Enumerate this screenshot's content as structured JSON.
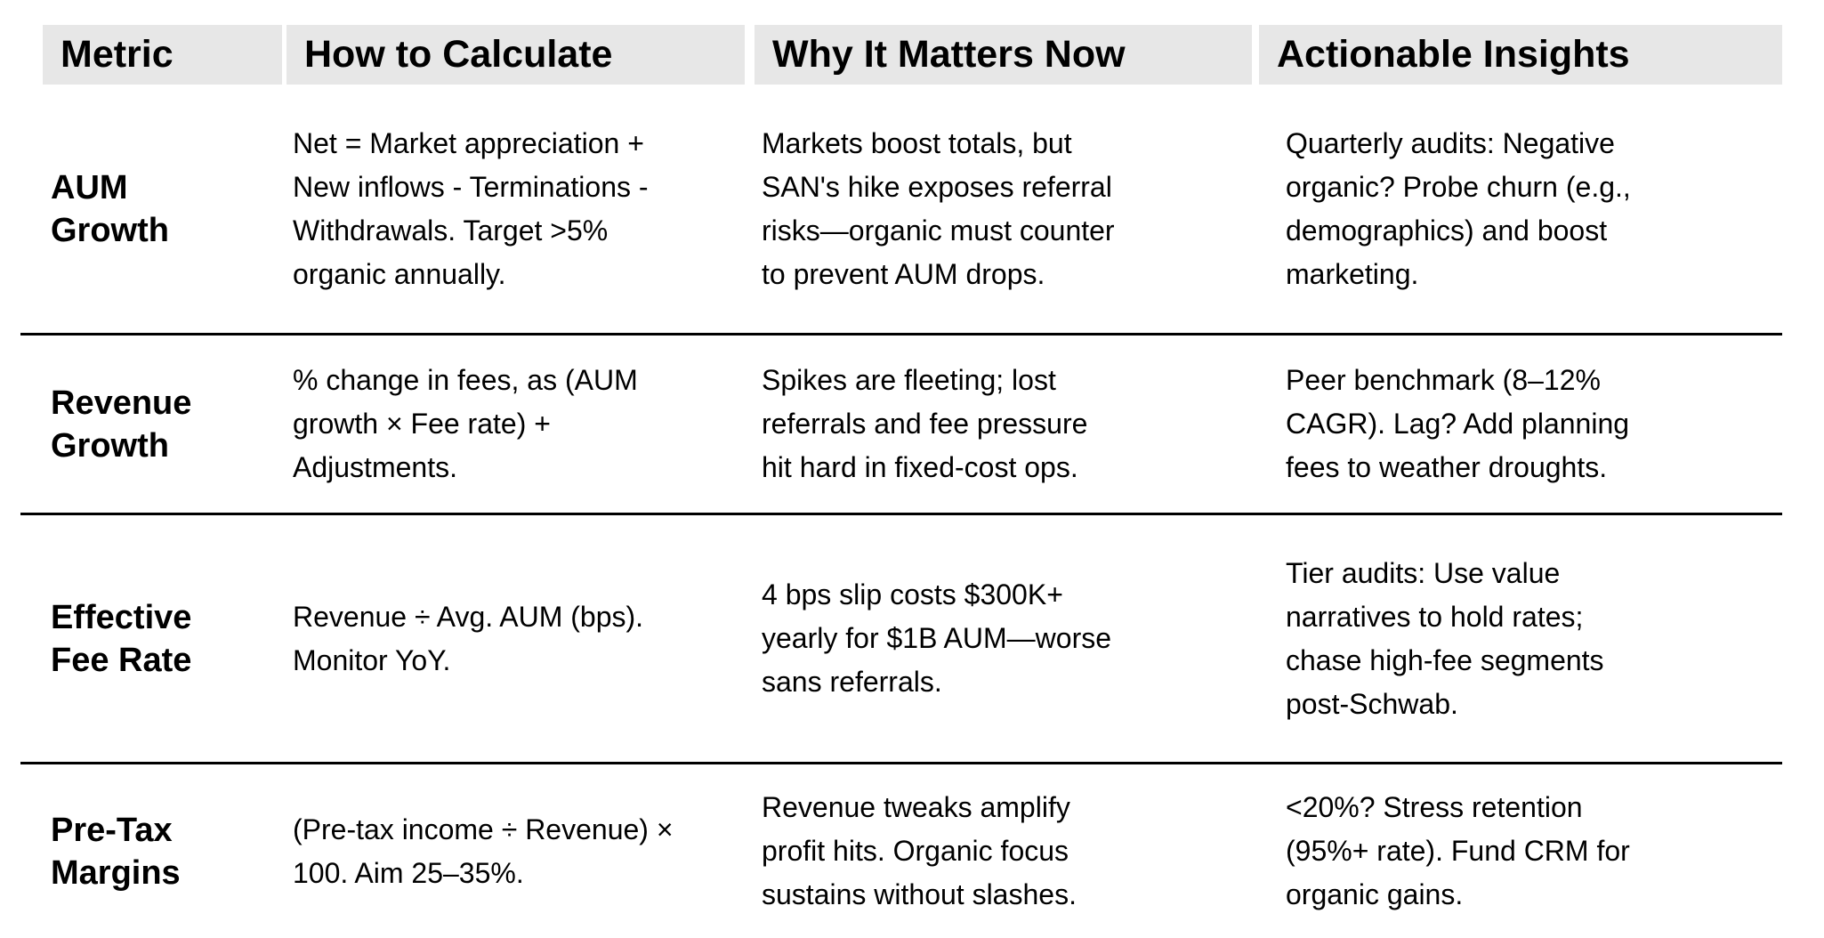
{
  "table": {
    "columns": [
      {
        "key": "metric",
        "label": "Metric"
      },
      {
        "key": "how",
        "label": "How to Calculate"
      },
      {
        "key": "why",
        "label": "Why It Matters Now"
      },
      {
        "key": "insights",
        "label": "Actionable Insights"
      }
    ],
    "rows": [
      {
        "metric": "AUM\nGrowth",
        "how": "Net = Market appreciation +\nNew inflows - Terminations -\nWithdrawals. Target >5%\norganic annually.",
        "why": "Markets boost totals, but\nSAN's hike exposes referral\nrisks—organic must counter\nto prevent AUM drops.",
        "insights": "Quarterly audits: Negative\norganic? Probe churn (e.g.,\ndemographics) and boost\nmarketing."
      },
      {
        "metric": "Revenue\nGrowth",
        "how": "% change in fees, as (AUM\ngrowth × Fee rate) +\nAdjustments.",
        "why": "Spikes are fleeting; lost\nreferrals and fee pressure\nhit hard in fixed-cost ops.",
        "insights": "Peer benchmark (8–12%\nCAGR). Lag? Add planning\nfees to weather droughts."
      },
      {
        "metric": "Effective\nFee Rate",
        "how": "Revenue ÷ Avg. AUM (bps).\nMonitor YoY.",
        "why": "4 bps slip costs $300K+\nyearly for $1B AUM—worse\nsans referrals.",
        "insights": "Tier audits: Use value\nnarratives to hold rates;\nchase high-fee segments\npost-Schwab."
      },
      {
        "metric": "Pre-Tax\nMargins",
        "how": "(Pre-tax income ÷ Revenue) ×\n100. Aim 25–35%.",
        "why": "Revenue tweaks amplify\nprofit hits. Organic focus\nsustains without slashes.",
        "insights": "<20%? Stress retention\n(95%+ rate). Fund CRM for\norganic gains."
      }
    ],
    "colors": {
      "header_bg": "#e7e7e7",
      "text": "#000000",
      "divider": "#000000",
      "page_bg": "#ffffff"
    }
  }
}
